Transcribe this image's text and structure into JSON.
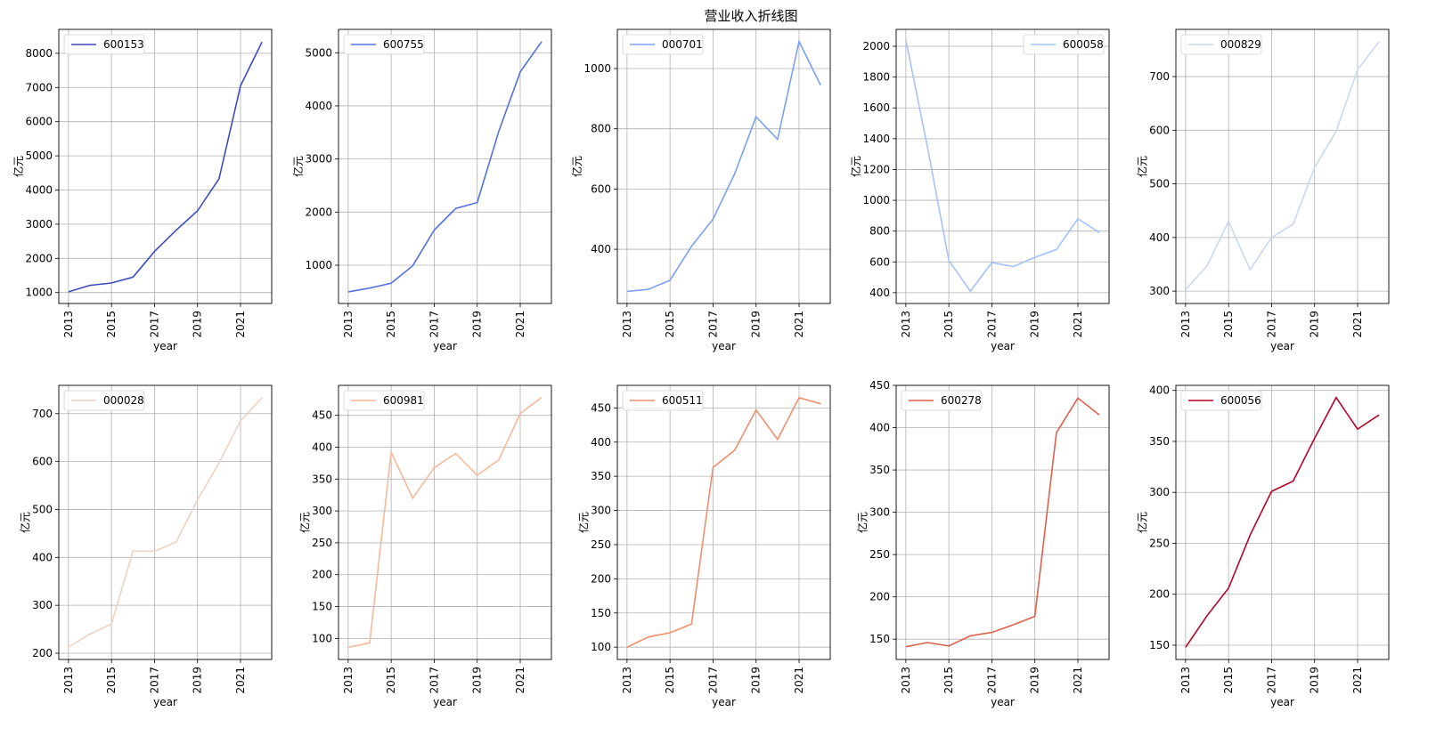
{
  "figure_title": "营业收入折线图",
  "chart_data": [
    {
      "type": "line",
      "name": "600153",
      "color": "#3b4cc0",
      "xlabel": "year",
      "ylabel": "亿元",
      "x": [
        2013,
        2014,
        2015,
        2016,
        2017,
        2018,
        2019,
        2020,
        2021,
        2022
      ],
      "y": [
        1020,
        1210,
        1280,
        1450,
        2200,
        2820,
        3390,
        4330,
        7050,
        8330
      ],
      "xticks": [
        2013,
        2015,
        2017,
        2019,
        2021
      ],
      "yticks": [
        1000,
        2000,
        3000,
        4000,
        5000,
        6000,
        7000,
        8000
      ],
      "ylim": [
        680,
        8700
      ],
      "legend": "upper left"
    },
    {
      "type": "line",
      "name": "600755",
      "color": "#5470de",
      "xlabel": "year",
      "ylabel": "亿元",
      "x": [
        2013,
        2014,
        2015,
        2016,
        2017,
        2018,
        2019,
        2020,
        2021,
        2022
      ],
      "y": [
        500,
        570,
        660,
        990,
        1660,
        2070,
        2180,
        3520,
        4640,
        5210
      ],
      "xticks": [
        2013,
        2015,
        2017,
        2019,
        2021
      ],
      "yticks": [
        1000,
        2000,
        3000,
        4000,
        5000
      ],
      "ylim": [
        280,
        5440
      ],
      "legend": "upper left"
    },
    {
      "type": "line",
      "name": "000701",
      "color": "#7b9ff9",
      "xlabel": "year",
      "ylabel": "亿元",
      "x": [
        2013,
        2014,
        2015,
        2016,
        2017,
        2018,
        2019,
        2020,
        2021,
        2022
      ],
      "y": [
        260,
        267,
        297,
        410,
        500,
        650,
        840,
        765,
        1090,
        945
      ],
      "xticks": [
        2013,
        2015,
        2017,
        2019,
        2021
      ],
      "yticks": [
        400,
        600,
        800,
        1000
      ],
      "ylim": [
        220,
        1130
      ],
      "legend": "upper left"
    },
    {
      "type": "line",
      "name": "600058",
      "color": "#a5c2fe",
      "xlabel": "year",
      "ylabel": "亿元",
      "x": [
        2013,
        2014,
        2015,
        2016,
        2017,
        2018,
        2019,
        2020,
        2021,
        2022
      ],
      "y": [
        2040,
        1350,
        610,
        410,
        595,
        570,
        630,
        680,
        880,
        790
      ],
      "xticks": [
        2013,
        2015,
        2017,
        2019,
        2021
      ],
      "yticks": [
        400,
        600,
        800,
        1000,
        1200,
        1400,
        1600,
        1800,
        2000
      ],
      "ylim": [
        330,
        2110
      ],
      "legend": "upper right"
    },
    {
      "type": "line",
      "name": "000829",
      "color": "#c9d7f0",
      "xlabel": "year",
      "ylabel": "亿元",
      "x": [
        2013,
        2014,
        2015,
        2016,
        2017,
        2018,
        2019,
        2020,
        2021,
        2022
      ],
      "y": [
        303,
        347,
        430,
        340,
        400,
        425,
        530,
        598,
        713,
        765
      ],
      "xticks": [
        2013,
        2015,
        2017,
        2019,
        2021
      ],
      "yticks": [
        300,
        400,
        500,
        600,
        700
      ],
      "ylim": [
        277,
        788
      ],
      "legend": "upper left"
    },
    {
      "type": "line",
      "name": "000028",
      "color": "#edd1c2",
      "xlabel": "year",
      "ylabel": "亿元",
      "x": [
        2013,
        2014,
        2015,
        2016,
        2017,
        2018,
        2019,
        2020,
        2021,
        2022
      ],
      "y": [
        213,
        240,
        261,
        413,
        413,
        432,
        520,
        597,
        685,
        733
      ],
      "xticks": [
        2013,
        2015,
        2017,
        2019,
        2021
      ],
      "yticks": [
        200,
        300,
        400,
        500,
        600,
        700
      ],
      "ylim": [
        187,
        759
      ],
      "legend": "upper left"
    },
    {
      "type": "line",
      "name": "600981",
      "color": "#f7b89c",
      "xlabel": "year",
      "ylabel": "亿元",
      "x": [
        2013,
        2014,
        2015,
        2016,
        2017,
        2018,
        2019,
        2020,
        2021,
        2022
      ],
      "y": [
        86,
        93,
        392,
        320,
        368,
        390,
        356,
        380,
        453,
        478
      ],
      "xticks": [
        2013,
        2015,
        2017,
        2019,
        2021
      ],
      "yticks": [
        100,
        150,
        200,
        250,
        300,
        350,
        400,
        450
      ],
      "ylim": [
        67,
        497
      ],
      "legend": "upper left"
    },
    {
      "type": "line",
      "name": "600511",
      "color": "#f18d6f",
      "xlabel": "year",
      "ylabel": "亿元",
      "x": [
        2013,
        2014,
        2015,
        2016,
        2017,
        2018,
        2019,
        2020,
        2021,
        2022
      ],
      "y": [
        100,
        115,
        121,
        134,
        363,
        388,
        447,
        404,
        465,
        456
      ],
      "xticks": [
        2013,
        2015,
        2017,
        2019,
        2021
      ],
      "yticks": [
        100,
        150,
        200,
        250,
        300,
        350,
        400,
        450
      ],
      "ylim": [
        82,
        483
      ],
      "legend": "upper left"
    },
    {
      "type": "line",
      "name": "600278",
      "color": "#de604d",
      "xlabel": "year",
      "ylabel": "亿元",
      "x": [
        2013,
        2014,
        2015,
        2016,
        2017,
        2018,
        2019,
        2020,
        2021,
        2022
      ],
      "y": [
        141,
        146,
        142,
        154,
        158,
        167,
        177,
        394,
        435,
        415
      ],
      "xticks": [
        2013,
        2015,
        2017,
        2019,
        2021
      ],
      "yticks": [
        150,
        200,
        250,
        300,
        350,
        400,
        450
      ],
      "ylim": [
        126,
        450
      ],
      "legend": "upper left"
    },
    {
      "type": "line",
      "name": "600056",
      "color": "#b40426",
      "xlabel": "year",
      "ylabel": "亿元",
      "x": [
        2013,
        2014,
        2015,
        2016,
        2017,
        2018,
        2019,
        2020,
        2021,
        2022
      ],
      "y": [
        148,
        179,
        206,
        258,
        301,
        311,
        353,
        393,
        362,
        376
      ],
      "xticks": [
        2013,
        2015,
        2017,
        2019,
        2021
      ],
      "yticks": [
        150,
        200,
        250,
        300,
        350,
        400
      ],
      "ylim": [
        136,
        405
      ],
      "legend": "upper left"
    }
  ]
}
